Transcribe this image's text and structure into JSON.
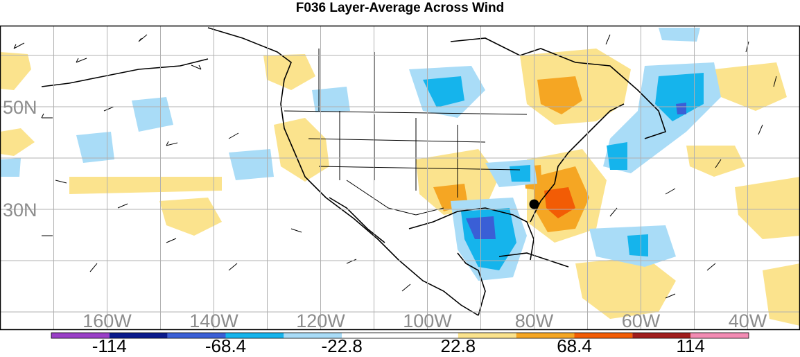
{
  "title": "F036 Layer-Average Across Wind",
  "map": {
    "grid": true,
    "lat_labels": [
      {
        "text": "50N",
        "lat": 50
      },
      {
        "text": "30N",
        "lat": 30
      }
    ],
    "lon_labels": [
      {
        "text": "160W",
        "lon": -160
      },
      {
        "text": "140W",
        "lon": -140
      },
      {
        "text": "120W",
        "lon": -120
      },
      {
        "text": "100W",
        "lon": -100
      },
      {
        "text": "80W",
        "lon": -80
      },
      {
        "text": "60W",
        "lon": -60
      },
      {
        "text": "40W",
        "lon": -40
      }
    ],
    "station_marker": {
      "name": "station-marker",
      "lat": 31,
      "lon": -80
    }
  },
  "colorbar": {
    "colors": [
      "#9a3fc7",
      "#0a1a8c",
      "#3a5fd6",
      "#15b4ec",
      "#a9dcf7",
      "#ffffff",
      "#ffffff",
      "#fbe38d",
      "#f5a623",
      "#f25c05",
      "#a01c1c",
      "#f28bb3"
    ],
    "labels": [
      "-114",
      "-68.4",
      "-22.8",
      "22.8",
      "68.4",
      "114"
    ]
  },
  "shading": {
    "note_colors": {
      "blue_light": "#a9dcf7",
      "blue": "#15b4ec",
      "blue_dark": "#3a5fd6",
      "yellow": "#fbe38d",
      "orange": "#f5a623",
      "red_orange": "#f25c05"
    }
  }
}
